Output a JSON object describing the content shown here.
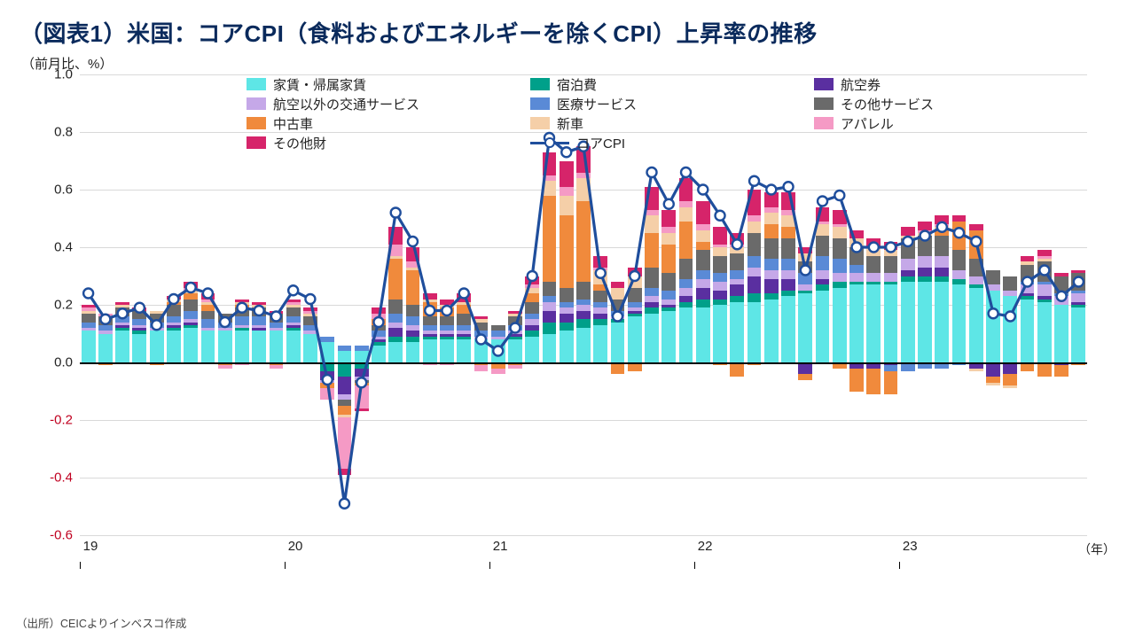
{
  "title": "（図表1）米国：コアCPI（食料およびエネルギーを除くCPI）上昇率の推移",
  "yaxis_title": "（前月比、%）",
  "xaxis_unit": "（年）",
  "source": "（出所）CEICよりインベスコ作成",
  "chart": {
    "type": "stacked-bar+line",
    "ylim": [
      -0.6,
      1.0
    ],
    "yticks": [
      -0.6,
      -0.4,
      -0.2,
      0.0,
      0.2,
      0.4,
      0.6,
      0.8,
      1.0
    ],
    "x_start_year": 19,
    "x_year_ticks": [
      19,
      20,
      21,
      22,
      23
    ],
    "n_months": 59,
    "bar_gap_ratio": 0.18,
    "grid_color": "#d9d9d9",
    "axis_color": "#000000",
    "background_color": "#ffffff",
    "line_color": "#1f4e9c",
    "line_width": 3.2,
    "marker_fill": "#ffffff",
    "marker_stroke": "#1f4e9c",
    "marker_radius": 5.5,
    "marker_stroke_width": 2.4,
    "legend": [
      {
        "key": "rent",
        "label": "家賃・帰属家賃",
        "color": "#5ee6e6"
      },
      {
        "key": "lodging",
        "label": "宿泊費",
        "color": "#00a08a"
      },
      {
        "key": "airfare",
        "label": "航空券",
        "color": "#5a2fa0"
      },
      {
        "key": "other_transport",
        "label": "航空以外の交通サービス",
        "color": "#c5a8e8"
      },
      {
        "key": "medical",
        "label": "医療サービス",
        "color": "#5a8ad6"
      },
      {
        "key": "other_services",
        "label": "その他サービス",
        "color": "#6a6a6a"
      },
      {
        "key": "used_cars",
        "label": "中古車",
        "color": "#f08a3c"
      },
      {
        "key": "new_cars",
        "label": "新車",
        "color": "#f5cfa8"
      },
      {
        "key": "apparel",
        "label": "アパレル",
        "color": "#f59ac5"
      },
      {
        "key": "other_goods",
        "label": "その他財",
        "color": "#d6246a"
      },
      {
        "key": "core",
        "label": "コアCPI",
        "is_line": true
      }
    ],
    "stack_order_pos": [
      "rent",
      "lodging",
      "airfare",
      "other_transport",
      "medical",
      "other_services",
      "used_cars",
      "new_cars",
      "apparel",
      "other_goods"
    ],
    "stack_order_neg": [
      "rent",
      "lodging",
      "airfare",
      "other_transport",
      "medical",
      "other_services",
      "used_cars",
      "new_cars",
      "apparel",
      "other_goods"
    ],
    "core_cpi": [
      0.24,
      0.15,
      0.17,
      0.19,
      0.13,
      0.22,
      0.26,
      0.24,
      0.14,
      0.19,
      0.18,
      0.16,
      0.25,
      0.22,
      -0.06,
      -0.49,
      -0.07,
      0.14,
      0.52,
      0.42,
      0.18,
      0.18,
      0.24,
      0.08,
      0.04,
      0.12,
      0.3,
      0.78,
      0.73,
      0.75,
      0.31,
      0.16,
      0.3,
      0.66,
      0.55,
      0.66,
      0.6,
      0.51,
      0.41,
      0.63,
      0.6,
      0.61,
      0.32,
      0.56,
      0.58,
      0.4,
      0.4,
      0.4,
      0.42,
      0.44,
      0.47,
      0.45,
      0.42,
      0.17,
      0.16,
      0.28,
      0.32,
      0.23,
      0.28
    ],
    "series": {
      "rent": [
        0.11,
        0.1,
        0.11,
        0.1,
        0.11,
        0.11,
        0.12,
        0.11,
        0.11,
        0.11,
        0.11,
        0.11,
        0.11,
        0.1,
        0.07,
        0.04,
        0.04,
        0.06,
        0.07,
        0.07,
        0.08,
        0.08,
        0.08,
        0.08,
        0.08,
        0.08,
        0.09,
        0.1,
        0.11,
        0.12,
        0.13,
        0.14,
        0.16,
        0.17,
        0.18,
        0.19,
        0.19,
        0.2,
        0.21,
        0.21,
        0.22,
        0.23,
        0.24,
        0.25,
        0.26,
        0.27,
        0.27,
        0.27,
        0.28,
        0.28,
        0.28,
        0.27,
        0.26,
        0.25,
        0.23,
        0.22,
        0.21,
        0.2,
        0.19
      ],
      "lodging": [
        0.0,
        0.0,
        0.01,
        0.01,
        0.0,
        0.01,
        0.01,
        0.0,
        0.0,
        0.01,
        0.0,
        0.0,
        0.01,
        0.0,
        -0.03,
        -0.05,
        -0.02,
        0.01,
        0.02,
        0.02,
        0.01,
        0.01,
        0.01,
        0.0,
        0.0,
        0.01,
        0.02,
        0.04,
        0.03,
        0.03,
        0.02,
        0.01,
        0.01,
        0.02,
        0.01,
        0.02,
        0.03,
        0.02,
        0.02,
        0.03,
        0.02,
        0.02,
        0.01,
        0.02,
        0.02,
        0.01,
        0.01,
        0.01,
        0.02,
        0.02,
        0.02,
        0.02,
        0.01,
        0.0,
        0.0,
        0.01,
        0.01,
        0.0,
        0.01
      ],
      "airfare": [
        0.0,
        0.0,
        0.01,
        0.01,
        0.0,
        0.01,
        0.01,
        0.0,
        0.0,
        0.0,
        0.01,
        0.0,
        0.01,
        0.0,
        -0.03,
        -0.06,
        -0.03,
        0.01,
        0.03,
        0.02,
        0.01,
        0.01,
        0.01,
        0.0,
        0.0,
        0.01,
        0.02,
        0.04,
        0.03,
        0.03,
        0.02,
        0.0,
        0.01,
        0.02,
        0.01,
        0.02,
        0.04,
        0.03,
        0.04,
        0.06,
        0.05,
        0.04,
        -0.04,
        0.02,
        0.0,
        -0.02,
        -0.02,
        -0.01,
        0.02,
        0.03,
        0.03,
        0.0,
        -0.02,
        -0.05,
        -0.04,
        0.01,
        0.01,
        -0.01,
        0.01
      ],
      "other_transport": [
        0.01,
        0.01,
        0.01,
        0.01,
        0.01,
        0.01,
        0.01,
        0.01,
        0.01,
        0.01,
        0.01,
        0.01,
        0.01,
        0.01,
        -0.01,
        -0.02,
        -0.01,
        0.01,
        0.02,
        0.02,
        0.01,
        0.01,
        0.01,
        0.01,
        0.01,
        0.01,
        0.02,
        0.03,
        0.02,
        0.02,
        0.02,
        0.01,
        0.01,
        0.02,
        0.02,
        0.03,
        0.03,
        0.03,
        0.02,
        0.03,
        0.03,
        0.03,
        0.02,
        0.03,
        0.03,
        0.03,
        0.03,
        0.03,
        0.04,
        0.04,
        0.04,
        0.03,
        0.03,
        0.02,
        0.02,
        0.03,
        0.04,
        0.03,
        0.03
      ],
      "medical": [
        0.02,
        0.02,
        0.02,
        0.02,
        0.02,
        0.02,
        0.03,
        0.03,
        0.02,
        0.03,
        0.03,
        0.02,
        0.02,
        0.02,
        0.02,
        0.02,
        0.02,
        0.02,
        0.03,
        0.03,
        0.02,
        0.02,
        0.02,
        0.02,
        0.02,
        0.02,
        0.02,
        0.02,
        0.02,
        0.02,
        0.02,
        0.02,
        0.02,
        0.03,
        0.03,
        0.03,
        0.03,
        0.03,
        0.03,
        0.04,
        0.04,
        0.04,
        0.04,
        0.05,
        0.05,
        0.03,
        0.0,
        -0.02,
        -0.03,
        -0.02,
        -0.02,
        -0.01,
        0.0,
        0.0,
        0.0,
        0.01,
        0.01,
        0.01,
        0.01
      ],
      "other_services": [
        0.03,
        0.03,
        0.03,
        0.03,
        0.03,
        0.04,
        0.04,
        0.03,
        0.03,
        0.03,
        0.03,
        0.03,
        0.03,
        0.03,
        0.0,
        -0.02,
        -0.01,
        0.02,
        0.05,
        0.04,
        0.03,
        0.03,
        0.04,
        0.03,
        0.02,
        0.03,
        0.04,
        0.05,
        0.05,
        0.06,
        0.04,
        0.04,
        0.05,
        0.07,
        0.06,
        0.07,
        0.07,
        0.06,
        0.06,
        0.08,
        0.07,
        0.07,
        0.04,
        0.07,
        0.07,
        0.06,
        0.06,
        0.06,
        0.07,
        0.07,
        0.07,
        0.07,
        0.06,
        0.05,
        0.05,
        0.06,
        0.07,
        0.06,
        0.06
      ],
      "used_cars": [
        0.0,
        -0.01,
        0.0,
        0.0,
        -0.01,
        0.01,
        0.02,
        0.02,
        -0.01,
        0.01,
        0.0,
        -0.01,
        0.0,
        0.0,
        -0.02,
        -0.03,
        -0.01,
        0.02,
        0.14,
        0.12,
        0.05,
        0.03,
        0.03,
        -0.01,
        -0.02,
        -0.01,
        0.03,
        0.3,
        0.25,
        0.28,
        0.02,
        -0.04,
        -0.03,
        0.12,
        0.1,
        0.13,
        0.03,
        -0.01,
        -0.05,
        -0.01,
        0.05,
        0.04,
        -0.02,
        0.0,
        -0.02,
        -0.08,
        -0.09,
        -0.08,
        0.0,
        0.0,
        0.02,
        0.1,
        0.1,
        -0.02,
        -0.04,
        -0.03,
        -0.05,
        -0.04,
        -0.01
      ],
      "new_cars": [
        0.01,
        0.0,
        0.01,
        0.0,
        0.01,
        0.01,
        0.01,
        0.01,
        0.0,
        0.01,
        0.01,
        0.0,
        0.01,
        0.01,
        0.0,
        -0.01,
        0.0,
        0.0,
        0.01,
        0.01,
        0.01,
        0.01,
        0.01,
        0.01,
        0.0,
        0.01,
        0.02,
        0.05,
        0.07,
        0.08,
        0.05,
        0.04,
        0.04,
        0.06,
        0.04,
        0.05,
        0.04,
        0.03,
        0.02,
        0.04,
        0.04,
        0.04,
        0.03,
        0.04,
        0.04,
        0.03,
        0.03,
        0.02,
        0.01,
        0.01,
        0.01,
        0.0,
        -0.01,
        -0.01,
        -0.01,
        0.01,
        0.01,
        0.0,
        0.0
      ],
      "apparel": [
        0.01,
        0.01,
        0.0,
        0.0,
        0.0,
        0.0,
        0.01,
        0.01,
        -0.01,
        -0.01,
        0.0,
        -0.01,
        0.01,
        0.01,
        -0.04,
        -0.18,
        -0.08,
        0.02,
        0.04,
        0.02,
        -0.01,
        -0.01,
        0.0,
        -0.02,
        -0.02,
        -0.01,
        0.01,
        0.02,
        0.03,
        0.02,
        0.01,
        0.0,
        0.0,
        0.02,
        0.02,
        0.02,
        0.02,
        0.01,
        0.01,
        0.02,
        0.02,
        0.02,
        0.0,
        0.01,
        0.01,
        0.0,
        0.0,
        0.0,
        0.0,
        0.01,
        0.01,
        0.0,
        0.0,
        0.0,
        0.0,
        0.0,
        0.01,
        0.0,
        0.0
      ],
      "other_goods": [
        0.01,
        0.0,
        0.01,
        0.01,
        0.0,
        0.01,
        0.02,
        0.02,
        0.0,
        0.01,
        0.01,
        0.01,
        0.01,
        0.01,
        0.0,
        -0.02,
        -0.01,
        0.02,
        0.06,
        0.05,
        0.02,
        0.02,
        0.03,
        0.01,
        0.0,
        0.01,
        0.03,
        0.08,
        0.09,
        0.09,
        0.04,
        0.02,
        0.03,
        0.08,
        0.06,
        0.08,
        0.08,
        0.06,
        0.04,
        0.09,
        0.05,
        0.06,
        0.02,
        0.05,
        0.05,
        0.03,
        0.03,
        0.03,
        0.03,
        0.03,
        0.03,
        0.02,
        0.02,
        0.0,
        0.0,
        0.02,
        0.02,
        0.01,
        0.01
      ]
    }
  }
}
